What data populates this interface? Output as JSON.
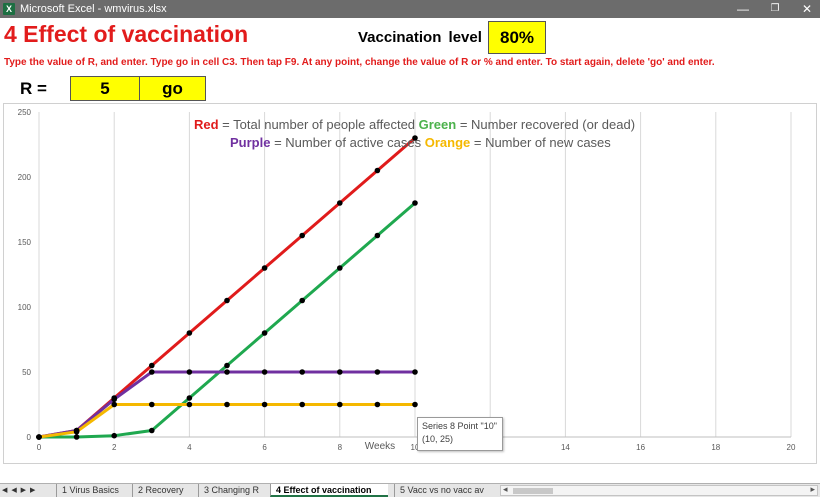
{
  "window": {
    "title": "Microsoft Excel - wmvirus.xlsx",
    "app_icon": "excel-icon",
    "min_glyph": "—",
    "max_glyph": "❐",
    "close_glyph": "✕"
  },
  "sheet": {
    "heading": "4 Effect of vaccination",
    "vaccination_label": "Vaccination  level",
    "vaccination_value": "80%",
    "instructions": "Type the value of R, and enter. Type go in cell C3. Then tap F9. At any point, change the value of R or % and enter. To start again, delete 'go' and enter.",
    "r_label": "R =",
    "r_value": "5",
    "go_value": "go"
  },
  "legend": {
    "red_word": "Red",
    "red_text": " = Total number of people affected  ",
    "green_word": "Green",
    "green_text": " = Number recovered (or dead)",
    "purple_word": "Purple",
    "purple_text": " = Number of active cases  ",
    "orange_word": "Orange",
    "orange_text": " = Number of new cases"
  },
  "tooltip": {
    "line1": "Series 8 Point \"10\"",
    "line2": "(10, 25)"
  },
  "chart_data": {
    "type": "line",
    "xlabel": "Weeks",
    "ylabel": "",
    "xlim": [
      0,
      20
    ],
    "ylim": [
      0,
      250
    ],
    "x_ticks": [
      0,
      2,
      4,
      6,
      8,
      10,
      12,
      14,
      16,
      18,
      20
    ],
    "y_ticks": [
      0,
      50,
      100,
      150,
      200,
      250
    ],
    "grid": "vertical",
    "series": [
      {
        "color": "#e01b1b",
        "x": [
          0,
          1,
          2,
          3,
          4,
          5,
          6,
          7,
          8,
          9,
          10
        ],
        "values": [
          0,
          5,
          30,
          55,
          80,
          105,
          130,
          155,
          180,
          205,
          230
        ]
      },
      {
        "color": "#1fa84f",
        "x": [
          0,
          1,
          2,
          3,
          4,
          5,
          6,
          7,
          8,
          9,
          10
        ],
        "values": [
          0,
          0,
          1,
          5,
          30,
          55,
          80,
          105,
          130,
          155,
          180
        ]
      },
      {
        "color": "#7030a0",
        "x": [
          0,
          1,
          2,
          3,
          4,
          5,
          6,
          7,
          8,
          9,
          10
        ],
        "values": [
          0,
          5,
          29,
          50,
          50,
          50,
          50,
          50,
          50,
          50,
          50
        ]
      },
      {
        "color": "#f5b800",
        "x": [
          0,
          1,
          2,
          3,
          4,
          5,
          6,
          7,
          8,
          9,
          10
        ],
        "values": [
          0,
          4,
          25,
          25,
          25,
          25,
          25,
          25,
          25,
          25,
          25
        ]
      }
    ]
  },
  "tabs": {
    "nav": "◀ ◀ ▶ ▶",
    "items": [
      "1 Virus Basics",
      "2 Recovery",
      "3 Changing R",
      "4 Effect of vaccination",
      "5 Vacc vs no vacc av"
    ],
    "active": 3
  }
}
